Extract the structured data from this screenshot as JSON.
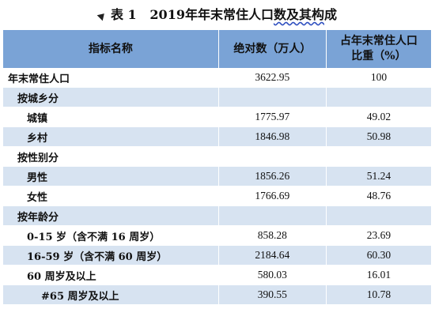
{
  "title": {
    "prefix": "表 1",
    "year": "2019",
    "text_before": "年年末常住人口",
    "underlined": "数及其构",
    "text_after": "成"
  },
  "table": {
    "headers": [
      "指标名称",
      "绝对数（万人）",
      "占年末常住人口比重（%）"
    ],
    "header_col3_lines": [
      "占年末常住人口",
      "比重（%）"
    ],
    "rows": [
      {
        "name": "年末常住人口",
        "abs": "3622.95",
        "pct": "100"
      },
      {
        "name": "按城乡分",
        "abs": "",
        "pct": ""
      },
      {
        "name": "城镇",
        "abs": "1775.97",
        "pct": "49.02"
      },
      {
        "name": "乡村",
        "abs": "1846.98",
        "pct": "50.98"
      },
      {
        "name": "按性别分",
        "abs": "",
        "pct": ""
      },
      {
        "name": "男性",
        "abs": "1856.26",
        "pct": "51.24"
      },
      {
        "name": "女性",
        "abs": "1766.69",
        "pct": "48.76"
      },
      {
        "name": "按年龄分",
        "abs": "",
        "pct": ""
      },
      {
        "name": "0-15 岁（含不满 16 周岁）",
        "abs": "858.28",
        "pct": "23.69"
      },
      {
        "name": "16-59 岁（含不满 60 周岁）",
        "abs": "2184.64",
        "pct": "60.30"
      },
      {
        "name": "60 周岁及以上",
        "abs": "580.03",
        "pct": "16.01"
      },
      {
        "name": "#65 周岁及以上",
        "abs": "390.55",
        "pct": "10.78"
      }
    ]
  },
  "colors": {
    "header_bg": "#7aa3d6",
    "stripe_bg": "#d7e3f1"
  }
}
